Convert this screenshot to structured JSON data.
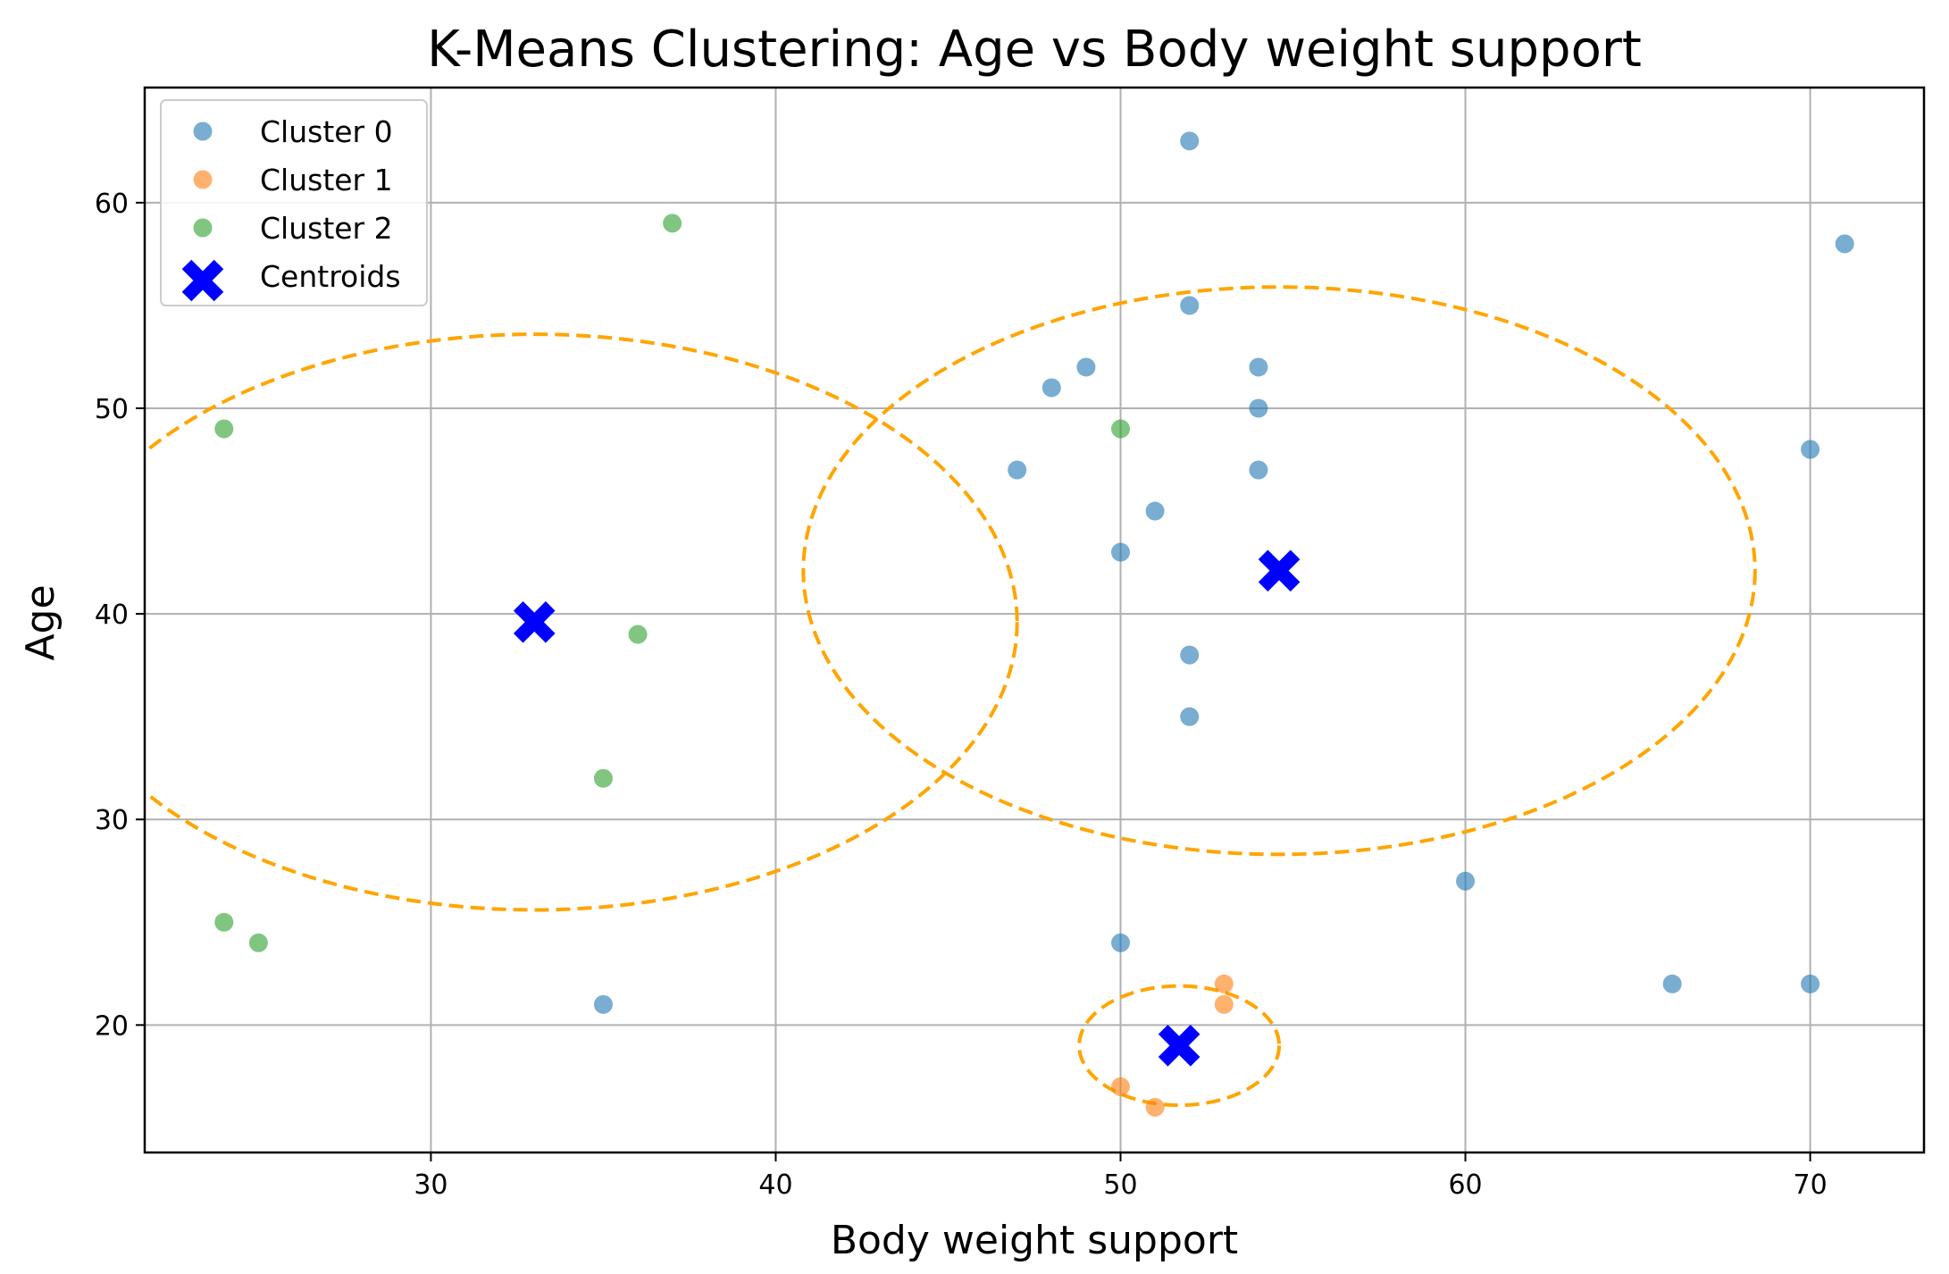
{
  "chart_data": {
    "type": "scatter",
    "title": "K-Means Clustering: Age vs Body weight support",
    "xlabel": "Body weight support",
    "ylabel": "Age",
    "xlim": [
      21.7,
      73.3
    ],
    "ylim": [
      13.8,
      65.6
    ],
    "xticks": [
      30,
      40,
      50,
      60,
      70
    ],
    "yticks": [
      20,
      30,
      40,
      50,
      60
    ],
    "grid": true,
    "legend_position": "top-left",
    "series": [
      {
        "name": "Cluster 0",
        "color": "#1f77b4",
        "points": [
          [
            52,
            63
          ],
          [
            71,
            58
          ],
          [
            52,
            55
          ],
          [
            54,
            52
          ],
          [
            49,
            52
          ],
          [
            48,
            51
          ],
          [
            54,
            50
          ],
          [
            70,
            48
          ],
          [
            47,
            47
          ],
          [
            54,
            47
          ],
          [
            51,
            45
          ],
          [
            50,
            43
          ],
          [
            52,
            38
          ],
          [
            52,
            35
          ],
          [
            60,
            27
          ],
          [
            50,
            24
          ],
          [
            66,
            22
          ],
          [
            70,
            22
          ],
          [
            35,
            21
          ]
        ]
      },
      {
        "name": "Cluster 1",
        "color": "#ff7f0e",
        "points": [
          [
            53,
            22
          ],
          [
            53,
            21
          ],
          [
            50,
            17
          ],
          [
            51,
            16
          ]
        ]
      },
      {
        "name": "Cluster 2",
        "color": "#2ca02c",
        "points": [
          [
            37,
            59
          ],
          [
            24,
            49
          ],
          [
            50,
            49
          ],
          [
            36,
            39
          ],
          [
            35,
            32
          ],
          [
            24,
            25
          ],
          [
            25,
            24
          ]
        ]
      }
    ],
    "centroids": {
      "name": "Centroids",
      "color": "#0000ff",
      "points": [
        [
          54.6,
          42.1
        ],
        [
          51.7,
          19.0
        ],
        [
          33.0,
          39.6
        ]
      ]
    },
    "ellipses": {
      "color": "#ffa500",
      "items": [
        {
          "cx": 54.6,
          "cy": 42.1,
          "rx": 13.8,
          "ry": 13.8
        },
        {
          "cx": 51.7,
          "cy": 19.0,
          "rx": 2.9,
          "ry": 2.9
        },
        {
          "cx": 33.0,
          "cy": 39.6,
          "rx": 14.0,
          "ry": 14.0
        }
      ]
    }
  }
}
